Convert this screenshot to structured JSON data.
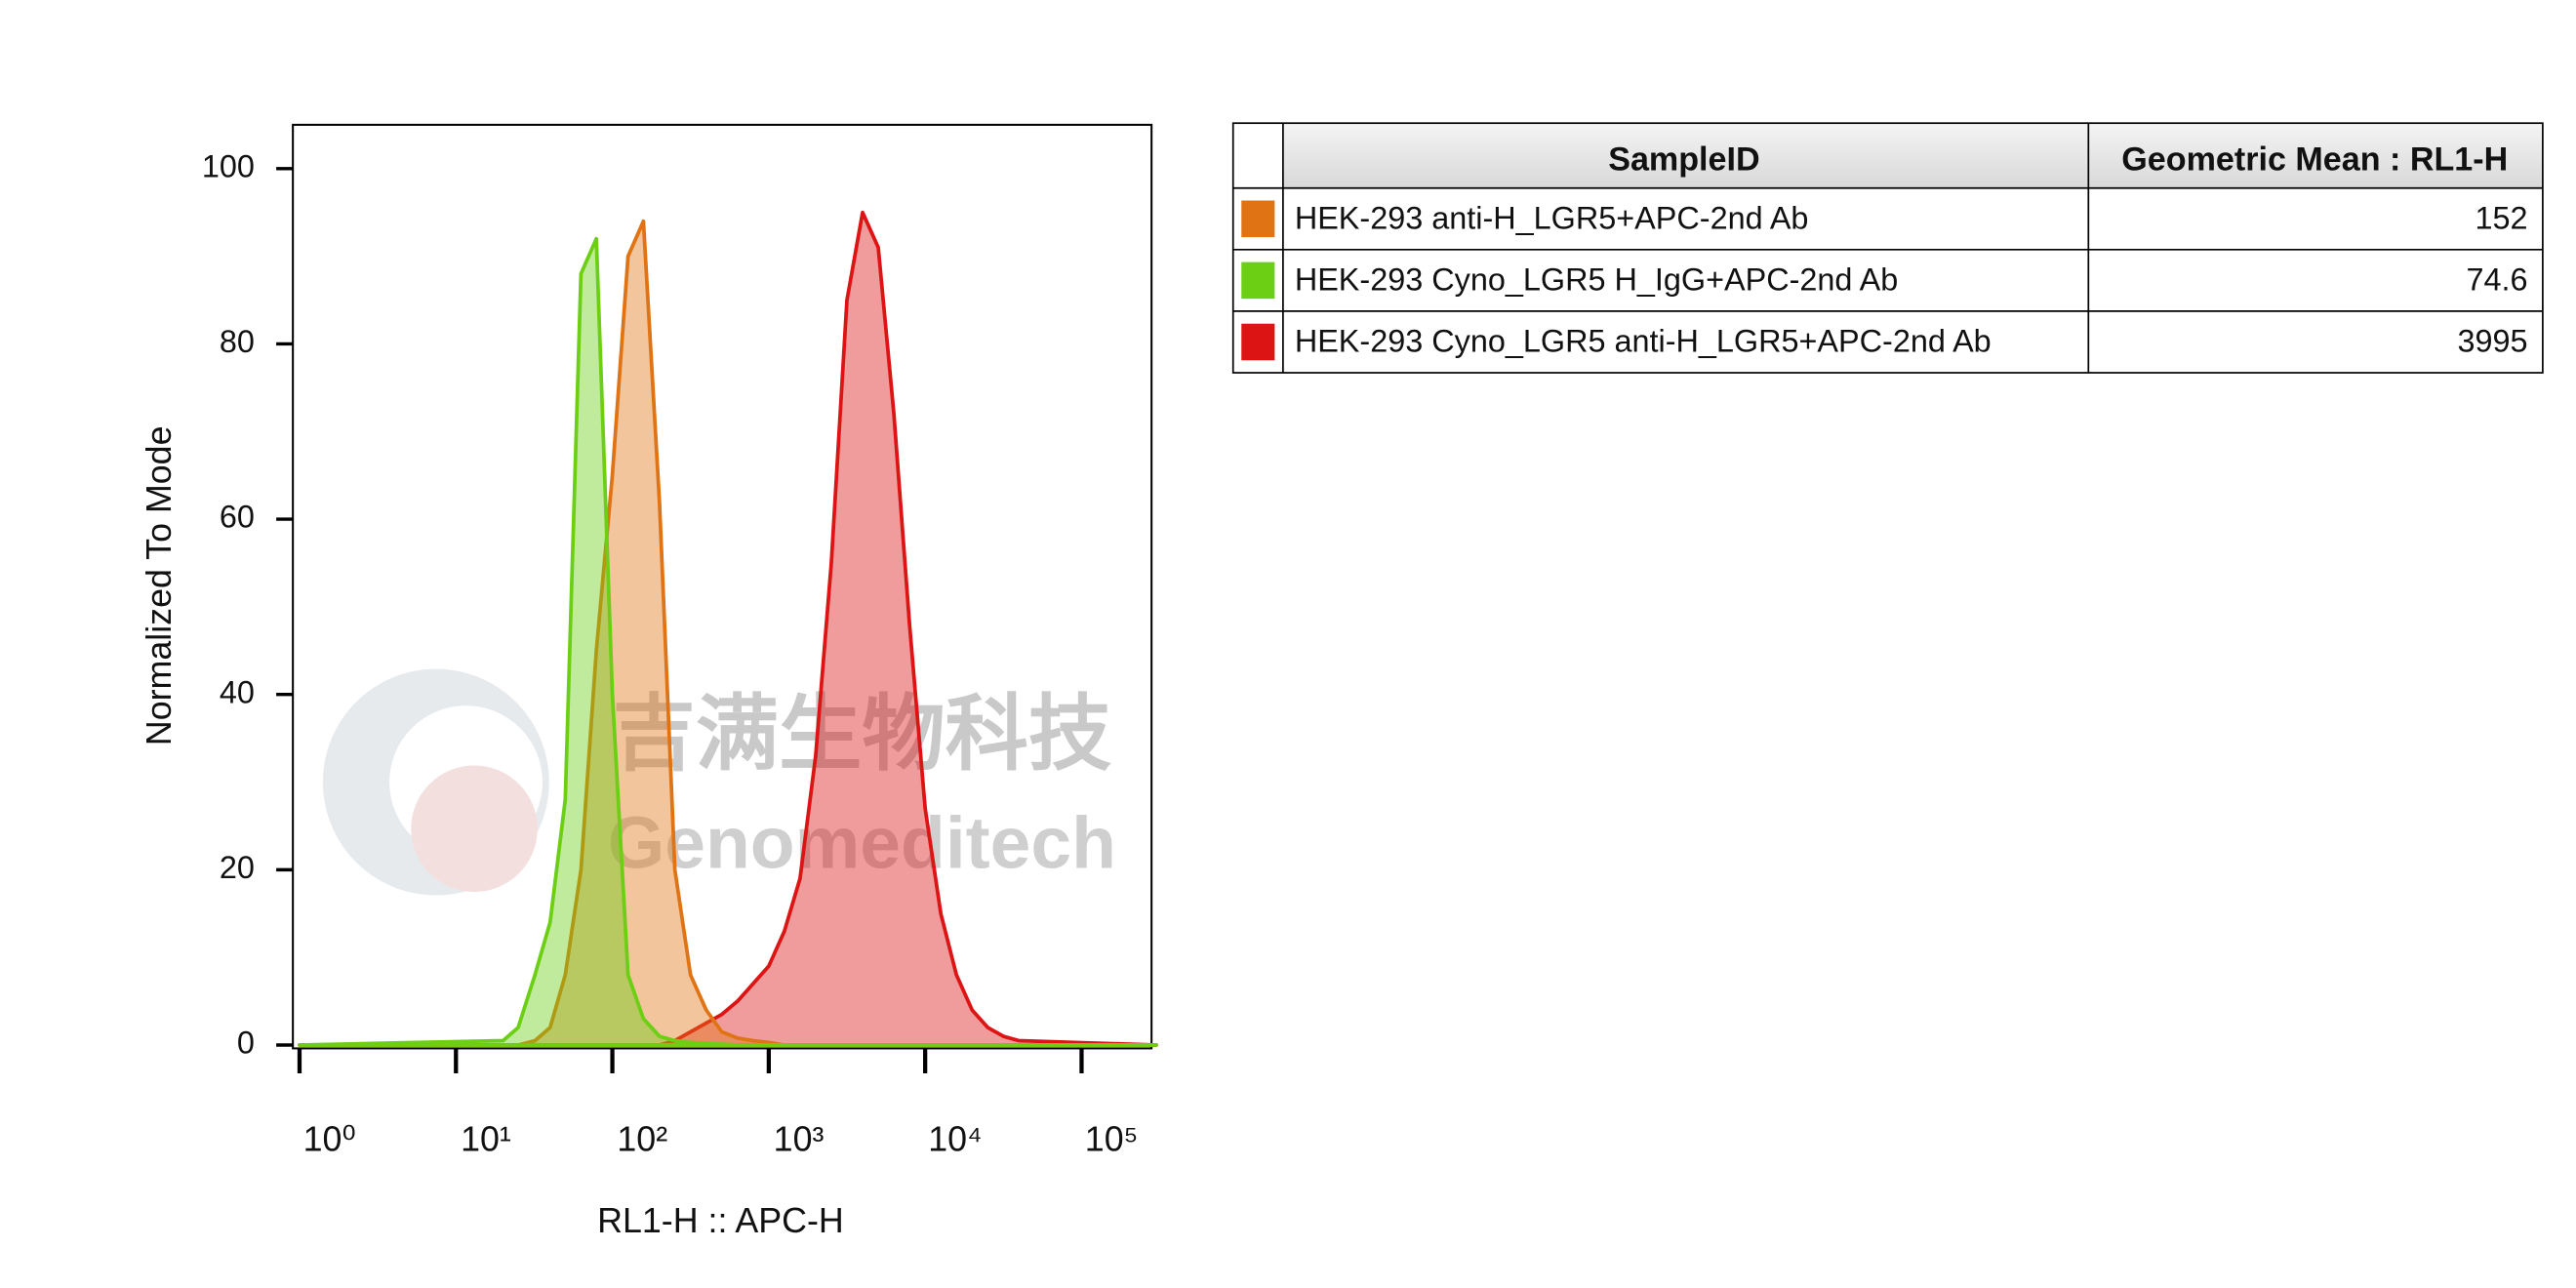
{
  "chart_data": {
    "type": "histogram-overlay",
    "xlabel": "RL1-H :: APC-H",
    "ylabel": "Normalized To Mode",
    "xscale": "log",
    "xlim": [
      1,
      300000
    ],
    "ylim": [
      0,
      105
    ],
    "xticks": [
      {
        "value": 1,
        "label": "10⁰"
      },
      {
        "value": 10,
        "label": "10¹"
      },
      {
        "value": 100,
        "label": "10²"
      },
      {
        "value": 1000,
        "label": "10³"
      },
      {
        "value": 10000,
        "label": "10⁴"
      },
      {
        "value": 100000,
        "label": "10⁵"
      }
    ],
    "yticks": [
      0,
      20,
      40,
      60,
      80,
      100
    ],
    "x": [
      1,
      20,
      25,
      32,
      40,
      50,
      63,
      79,
      100,
      126,
      158,
      200,
      251,
      316,
      398,
      501,
      631,
      794,
      1000,
      1259,
      1585,
      1995,
      2512,
      3162,
      3981,
      5012,
      6310,
      7943,
      10000,
      12589,
      15849,
      19953,
      25119,
      31623,
      39811,
      300000
    ],
    "series": [
      {
        "name": "HEK-293 anti-H_LGR5+APC-2nd Ab",
        "color": "#e07414",
        "values": [
          0,
          0,
          0,
          0.5,
          2,
          8,
          20,
          45,
          65,
          90,
          94,
          62,
          20,
          8,
          4,
          1.5,
          0.8,
          0.5,
          0.3,
          0,
          0,
          0,
          0,
          0,
          0,
          0,
          0,
          0,
          0,
          0,
          0,
          0,
          0,
          0,
          0,
          0
        ]
      },
      {
        "name": "HEK-293 Cyno_LGR5 H_IgG+APC-2nd Ab",
        "color": "#6ccf14",
        "values": [
          0,
          0.5,
          2,
          8,
          14,
          28,
          88,
          92,
          40,
          8,
          3,
          1,
          0.5,
          0.3,
          0.2,
          0.1,
          0,
          0,
          0,
          0,
          0,
          0,
          0,
          0,
          0,
          0,
          0,
          0,
          0,
          0,
          0,
          0,
          0,
          0,
          0,
          0
        ]
      },
      {
        "name": "HEK-293 Cyno_LGR5 anti-H_LGR5+APC-2nd Ab",
        "color": "#dd1414",
        "values": [
          0,
          0,
          0,
          0,
          0,
          0,
          0,
          0,
          0,
          0,
          0,
          0,
          0.5,
          1.5,
          2.5,
          3.5,
          5,
          7,
          9,
          13,
          19,
          33,
          55,
          85,
          95,
          91,
          72,
          48,
          27,
          15,
          8,
          4,
          2,
          1,
          0.5,
          0
        ]
      }
    ],
    "table": {
      "columns": [
        "SampleID",
        "Geometric Mean : RL1-H"
      ],
      "geometric_means": [
        152,
        74.6,
        3995
      ]
    },
    "watermark": [
      "吉满生物科技",
      "Genomeditech"
    ]
  }
}
